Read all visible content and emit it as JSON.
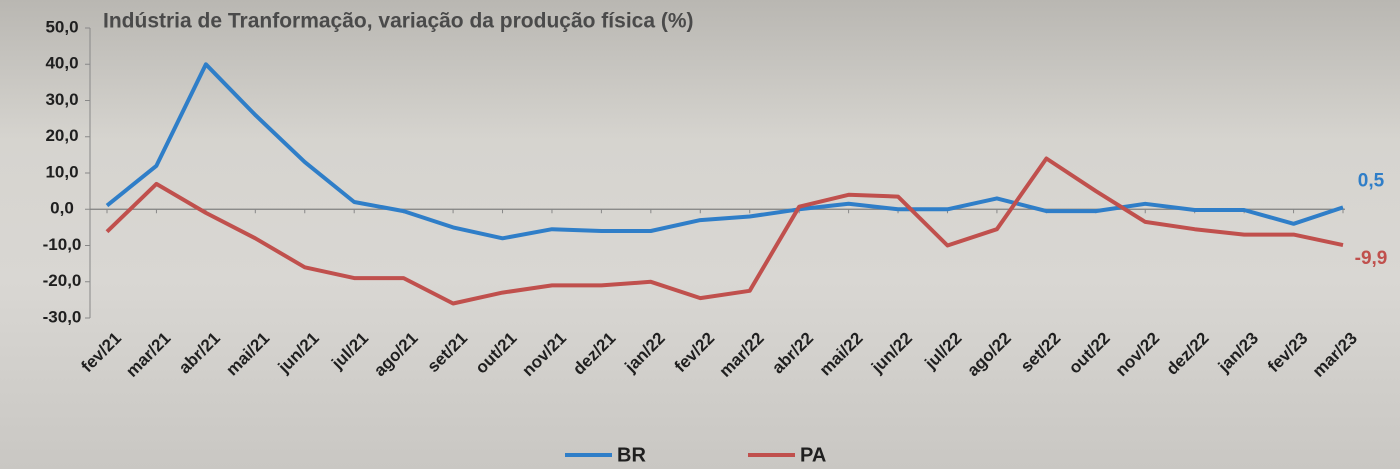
{
  "chart_data": {
    "type": "line",
    "title": "Indústria de Tranformação, variação da produção física (%)",
    "categories": [
      "fev/21",
      "mar/21",
      "abr/21",
      "mai/21",
      "jun/21",
      "jul/21",
      "ago/21",
      "set/21",
      "out/21",
      "nov/21",
      "dez/21",
      "jan/22",
      "fev/22",
      "mar/22",
      "abr/22",
      "mai/22",
      "jun/22",
      "jul/22",
      "ago/22",
      "set/22",
      "out/22",
      "nov/22",
      "dez/22",
      "jan/23",
      "fev/23",
      "mar/23"
    ],
    "series": [
      {
        "name": "BR",
        "color": "#2f7ec8",
        "values": [
          1.0,
          12.0,
          40.0,
          26.0,
          13.0,
          2.0,
          -0.5,
          -5.0,
          -8.0,
          -5.5,
          -6.0,
          -6.0,
          -3.0,
          -2.0,
          0.0,
          1.5,
          0.0,
          0.0,
          3.0,
          -0.5,
          -0.5,
          1.5,
          -0.2,
          -0.2,
          -4.0,
          0.5
        ],
        "value_labels": [
          null,
          null,
          null,
          null,
          null,
          null,
          null,
          null,
          null,
          null,
          null,
          null,
          null,
          null,
          null,
          null,
          null,
          null,
          null,
          null,
          null,
          null,
          null,
          null,
          null,
          "0,5"
        ]
      },
      {
        "name": "PA",
        "color": "#c0504d",
        "values": [
          -6.2,
          7.0,
          -1.0,
          -8.0,
          -16.0,
          -19.0,
          -19.0,
          -26.0,
          -23.0,
          -21.0,
          -21.0,
          -20.0,
          -24.5,
          -22.5,
          0.7,
          4.0,
          3.5,
          -10.0,
          -5.5,
          14.0,
          5.0,
          -3.5,
          -5.5,
          -7.0,
          -7.0,
          -9.9
        ],
        "value_labels": [
          null,
          null,
          null,
          null,
          null,
          null,
          null,
          null,
          null,
          null,
          null,
          null,
          null,
          null,
          null,
          null,
          null,
          null,
          null,
          null,
          null,
          null,
          null,
          null,
          null,
          "-9,9"
        ]
      }
    ],
    "ylim": [
      -30,
      50
    ],
    "yticks": [
      {
        "value": -30,
        "label": "-30,0"
      },
      {
        "value": -20,
        "label": "-20,0"
      },
      {
        "value": -10,
        "label": "-10,0"
      },
      {
        "value": 0,
        "label": "0,0"
      },
      {
        "value": 10,
        "label": "10,0"
      },
      {
        "value": 20,
        "label": "20,0"
      },
      {
        "value": 30,
        "label": "30,0"
      },
      {
        "value": 40,
        "label": "40,0"
      },
      {
        "value": 50,
        "label": "50,0"
      }
    ],
    "grid": false,
    "legend": "bottom"
  }
}
